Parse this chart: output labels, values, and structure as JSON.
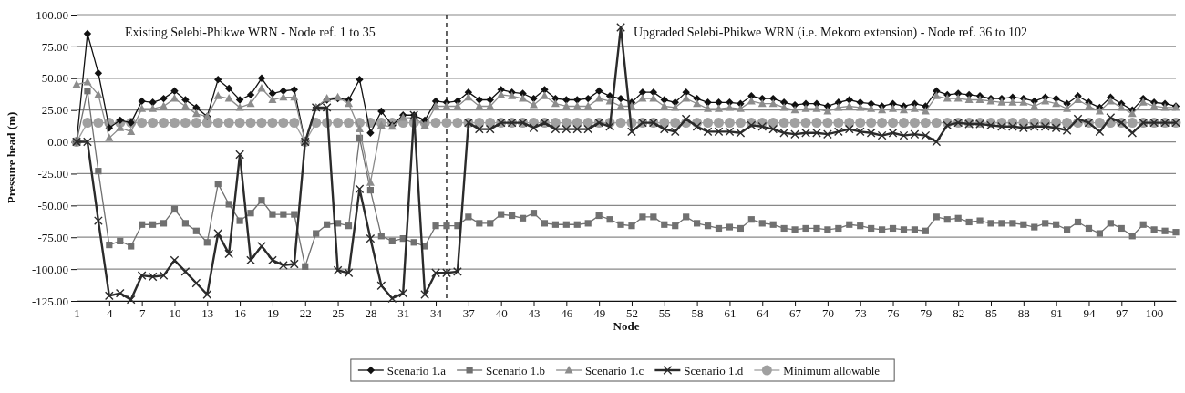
{
  "chart_data": {
    "type": "line",
    "xlabel": "Node",
    "ylabel": "Pressure head (m)",
    "x": [
      1,
      2,
      3,
      4,
      5,
      6,
      7,
      8,
      9,
      10,
      11,
      12,
      13,
      14,
      15,
      16,
      17,
      18,
      19,
      20,
      21,
      22,
      23,
      24,
      25,
      26,
      27,
      28,
      29,
      30,
      31,
      32,
      33,
      34,
      35,
      36,
      37,
      38,
      39,
      40,
      41,
      42,
      43,
      44,
      45,
      46,
      47,
      48,
      49,
      50,
      51,
      52,
      53,
      54,
      55,
      56,
      57,
      58,
      59,
      60,
      61,
      62,
      63,
      64,
      65,
      66,
      67,
      68,
      69,
      70,
      71,
      72,
      73,
      74,
      75,
      76,
      77,
      78,
      79,
      80,
      81,
      82,
      83,
      84,
      85,
      86,
      87,
      88,
      89,
      90,
      91,
      92,
      93,
      94,
      95,
      96,
      97,
      98,
      99,
      100,
      101,
      102
    ],
    "xlim": [
      1,
      102
    ],
    "xticks": [
      1,
      4,
      7,
      10,
      13,
      16,
      19,
      22,
      25,
      28,
      31,
      34,
      37,
      40,
      43,
      46,
      49,
      52,
      55,
      58,
      61,
      64,
      67,
      70,
      73,
      76,
      79,
      82,
      85,
      88,
      91,
      94,
      97,
      100
    ],
    "ylim": [
      -125,
      100
    ],
    "yticks": [
      {
        "value": 100,
        "label": "100.00"
      },
      {
        "value": 75,
        "label": "75.00"
      },
      {
        "value": 50,
        "label": "50.00"
      },
      {
        "value": 25,
        "label": "25.00"
      },
      {
        "value": 0,
        "label": "0.00"
      },
      {
        "value": -25,
        "label": "-25.00"
      },
      {
        "value": -50,
        "label": "-50.00"
      },
      {
        "value": -75,
        "label": "-75.00"
      },
      {
        "value": -100,
        "label": "-100.00"
      },
      {
        "value": -125,
        "label": "-125.00"
      }
    ],
    "grid": "y",
    "legend": "bottom",
    "series": [
      {
        "name": "Scenario 1.a",
        "color": "#111111",
        "marker": "diamond",
        "values": [
          0,
          85,
          54,
          11,
          17,
          15,
          32,
          31,
          34,
          40,
          33,
          27,
          20,
          49,
          42,
          33,
          37,
          50,
          38,
          40,
          41,
          0,
          27,
          33,
          34,
          33,
          49,
          7,
          24,
          13,
          21,
          21,
          17,
          32,
          31,
          32,
          39,
          33,
          33,
          41,
          39,
          38,
          34,
          41,
          34,
          33,
          33,
          34,
          40,
          36,
          34,
          31,
          39,
          39,
          33,
          31,
          39,
          34,
          31,
          31,
          31,
          30,
          36,
          34,
          34,
          31,
          29,
          30,
          30,
          28,
          31,
          33,
          31,
          30,
          28,
          30,
          28,
          30,
          28,
          40,
          37,
          38,
          37,
          36,
          34,
          34,
          35,
          34,
          32,
          35,
          34,
          30,
          36,
          31,
          27,
          35,
          30,
          25,
          34,
          31,
          30,
          28
        ]
      },
      {
        "name": "Scenario 1.b",
        "color": "#707070",
        "marker": "square",
        "values": [
          0,
          40,
          -23,
          -81,
          -78,
          -82,
          -65,
          -65,
          -64,
          -53,
          -64,
          -70,
          -79,
          -33,
          -49,
          -62,
          -56,
          -46,
          -57,
          -57,
          -57,
          -98,
          -72,
          -65,
          -64,
          -66,
          3,
          -38,
          -74,
          -78,
          -76,
          -79,
          -82,
          -66,
          -66,
          -66,
          -59,
          -64,
          -64,
          -57,
          -58,
          -60,
          -56,
          -64,
          -65,
          -65,
          -65,
          -64,
          -58,
          -61,
          -65,
          -66,
          -59,
          -59,
          -65,
          -66,
          -59,
          -64,
          -66,
          -68,
          -67,
          -68,
          -61,
          -64,
          -65,
          -68,
          -69,
          -68,
          -68,
          -69,
          -68,
          -65,
          -66,
          -68,
          -69,
          -68,
          -69,
          -69,
          -70,
          -59,
          -61,
          -60,
          -63,
          -62,
          -64,
          -64,
          -64,
          -65,
          -67,
          -64,
          -65,
          -69,
          -63,
          -68,
          -72,
          -64,
          -68,
          -74,
          -65,
          -69,
          -70,
          -71
        ]
      },
      {
        "name": "Scenario 1.c",
        "color": "#8c8c8c",
        "marker": "triangle",
        "values": [
          45,
          47,
          37,
          3,
          11,
          8,
          26,
          26,
          28,
          34,
          28,
          22,
          20,
          36,
          34,
          27,
          30,
          42,
          33,
          35,
          35,
          0,
          27,
          34,
          35,
          30,
          10,
          -32,
          13,
          12,
          19,
          19,
          13,
          28,
          28,
          28,
          35,
          28,
          28,
          37,
          36,
          34,
          29,
          36,
          30,
          28,
          28,
          28,
          34,
          32,
          28,
          28,
          34,
          34,
          28,
          27,
          34,
          30,
          26,
          26,
          27,
          26,
          32,
          30,
          30,
          27,
          25,
          26,
          26,
          24,
          27,
          28,
          27,
          26,
          25,
          26,
          25,
          26,
          24,
          36,
          34,
          34,
          33,
          33,
          32,
          31,
          31,
          31,
          28,
          32,
          30,
          26,
          33,
          28,
          24,
          32,
          27,
          22,
          31,
          28,
          27,
          27
        ]
      },
      {
        "name": "Scenario 1.d",
        "color": "#2b2b2b",
        "marker": "cross",
        "values": [
          0,
          0,
          -62,
          -121,
          -119,
          -124,
          -105,
          -106,
          -105,
          -93,
          -102,
          -111,
          -120,
          -72,
          -88,
          -10,
          -93,
          -82,
          -93,
          -97,
          -96,
          0,
          27,
          27,
          -101,
          -103,
          -37,
          -76,
          -113,
          -123,
          -119,
          21,
          -120,
          -103,
          -103,
          -102,
          15,
          10,
          10,
          15,
          15,
          15,
          11,
          15,
          10,
          10,
          10,
          10,
          15,
          12,
          90,
          8,
          15,
          15,
          10,
          8,
          18,
          12,
          8,
          8,
          8,
          7,
          13,
          12,
          10,
          7,
          6,
          7,
          7,
          6,
          8,
          10,
          8,
          7,
          5,
          7,
          5,
          6,
          5,
          0,
          13,
          15,
          14,
          14,
          13,
          12,
          12,
          11,
          12,
          12,
          11,
          9,
          18,
          15,
          8,
          19,
          15,
          7,
          15,
          15,
          15,
          15
        ]
      },
      {
        "name": "Minimum allowable",
        "color": "#a0a0a0",
        "marker": "circle",
        "values": [
          0,
          15,
          15,
          15,
          15,
          15,
          15,
          15,
          15,
          15,
          15,
          15,
          15,
          15,
          15,
          15,
          15,
          15,
          15,
          15,
          15,
          0,
          15,
          15,
          15,
          15,
          15,
          15,
          15,
          15,
          15,
          15,
          15,
          15,
          15,
          15,
          15,
          15,
          15,
          15,
          15,
          15,
          15,
          15,
          15,
          15,
          15,
          15,
          15,
          15,
          15,
          15,
          15,
          15,
          15,
          15,
          15,
          15,
          15,
          15,
          15,
          15,
          15,
          15,
          15,
          15,
          15,
          15,
          15,
          15,
          15,
          15,
          15,
          15,
          15,
          15,
          15,
          15,
          15,
          15,
          15,
          15,
          15,
          15,
          15,
          15,
          15,
          15,
          15,
          15,
          15,
          15,
          15,
          15,
          15,
          15,
          15,
          15,
          15,
          15,
          15,
          15
        ]
      }
    ],
    "ref_lines": [
      {
        "axis": "x",
        "value": 35,
        "line_style": "dashed",
        "color": "#111111"
      }
    ],
    "annotations": [
      "Existing Selebi-Phikwe WRN - Node ref. 1 to 35",
      "Upgraded Selebi-Phikwe WRN (i.e. Mekoro extension) - Node ref. 36 to 102"
    ]
  }
}
